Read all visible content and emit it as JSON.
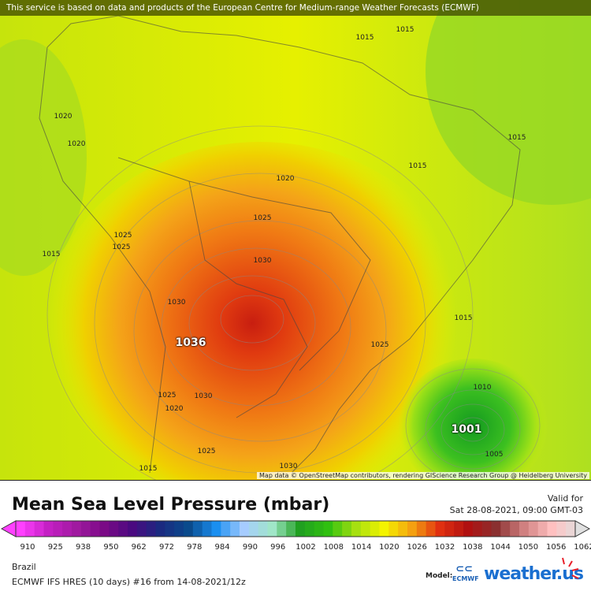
{
  "banner": "This service is based on data and products of the European Centre for Medium-range Weather Forecasts (ECMWF)",
  "attribution": "Map data © OpenStreetMap contributors, rendering GIScience Research Group @ Heidelberg University",
  "map": {
    "pressure_labels": [
      "1015",
      "1015",
      "1020",
      "1020",
      "1015",
      "1015",
      "1020",
      "1025",
      "1025",
      "1025",
      "1015",
      "1030",
      "1030",
      "1036",
      "1025",
      "1015",
      "1025",
      "1020",
      "1030",
      "1010",
      "1001",
      "1005",
      "1025",
      "1030",
      "1015"
    ],
    "high_center": "1036",
    "low_center": "1001"
  },
  "legend": {
    "title": "Mean Sea Level Pressure (mbar)",
    "valid_label": "Valid for",
    "valid_time": "Sat 28-08-2021, 09:00 GMT-03",
    "ticks": [
      "910",
      "925",
      "938",
      "950",
      "962",
      "972",
      "978",
      "984",
      "990",
      "996",
      "1002",
      "1008",
      "1014",
      "1020",
      "1026",
      "1032",
      "1038",
      "1044",
      "1050",
      "1056",
      "1062"
    ],
    "tick_colors": [
      "#ff40ff",
      "#c420c4",
      "#a01aa0",
      "#7a0a86",
      "#4a0a80",
      "#1a2a80",
      "#0a4a8c",
      "#1a8ff0",
      "#a6ccff",
      "#a0e6c8",
      "#20a020",
      "#30c010",
      "#a6e010",
      "#f4f400",
      "#f4a010",
      "#e03010",
      "#b01010",
      "#8a3030",
      "#d08080",
      "#ffc0c0",
      "#e0e0e0"
    ]
  },
  "footer": {
    "region": "Brazil",
    "model_run": "ECMWF IFS HRES (10 days) #16 from  14-08-2021/12z",
    "model_label": "Model:",
    "ecmwf_logo": "ECMWF",
    "brand": "weather.us"
  },
  "colors": {
    "accent": "#1a6fd0"
  }
}
